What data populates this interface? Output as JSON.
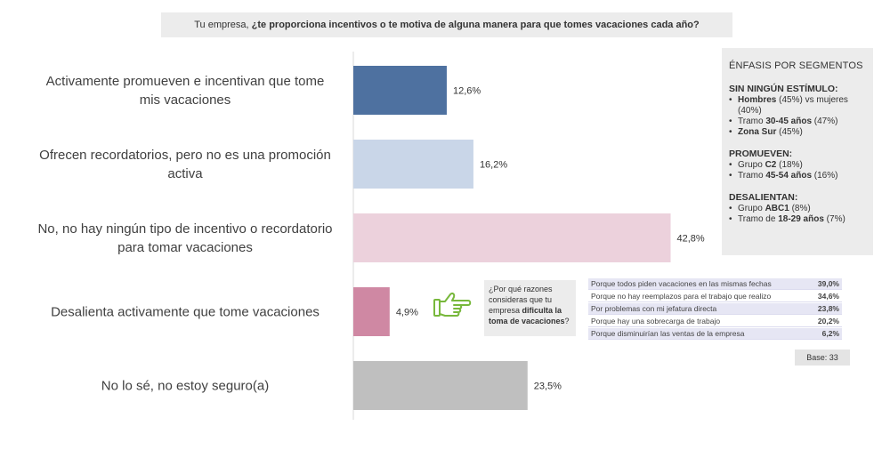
{
  "header": {
    "prefix": "Tu empresa, ",
    "question": "¿te proporciona incentivos o te motiva de alguna manera para que tomes vacaciones cada año?"
  },
  "chart_data": {
    "type": "bar",
    "orientation": "horizontal",
    "categories": [
      [
        "Activamente promueven e incentivan que tome",
        "mis vacaciones"
      ],
      [
        "Ofrecen recordatorios, pero no es una promoción",
        "activa"
      ],
      [
        "No, no hay ningún tipo de incentivo o recordatorio",
        "para tomar vacaciones"
      ],
      [
        "Desalienta activamente que tome vacaciones"
      ],
      [
        "No lo sé, no estoy seguro(a)"
      ]
    ],
    "values": [
      12.6,
      16.2,
      42.8,
      4.9,
      23.5
    ],
    "value_labels": [
      "12,6%",
      "16,2%",
      "42,8%",
      "4,9%",
      "23,5%"
    ],
    "colors": [
      "#4e71a0",
      "#c9d6e8",
      "#ecd1dc",
      "#cf88a3",
      "#bfbfbf"
    ],
    "xlim": [
      0,
      45
    ],
    "grid": false
  },
  "segments": {
    "title": "ÉNFASIS POR SEGMENTOS",
    "groups": [
      {
        "title": "SIN NINGÚN ESTÍMULO:",
        "items": [
          {
            "bold": "Hombres",
            "after": " (45%) vs mujeres (40%)"
          },
          {
            "before": "Tramo ",
            "bold": "30-45 años",
            "after": " (47%)"
          },
          {
            "bold": "Zona Sur",
            "after": " (45%)"
          }
        ]
      },
      {
        "title": "PROMUEVEN:",
        "items": [
          {
            "before": "Grupo ",
            "bold": "C2",
            "after": " (18%)"
          },
          {
            "before": "Tramo ",
            "bold": "45-54 años",
            "after": " (16%)"
          }
        ]
      },
      {
        "title": "DESALIENTAN:",
        "items": [
          {
            "before": "Grupo ",
            "bold": "ABC1",
            "after": " (8%)"
          },
          {
            "before": "Tramo de ",
            "bold": "18-29 años",
            "after": " (7%)"
          }
        ]
      }
    ]
  },
  "hand_icon": "pointing-hand-icon",
  "why": {
    "text1": "¿Por qué razones consideras que tu empresa ",
    "bold": "dificulta la toma de vacaciones",
    "text2": "?"
  },
  "reasons": [
    {
      "text": "Porque todos piden vacaciones en las mismas fechas",
      "value": "39,0%"
    },
    {
      "text": "Porque no hay reemplazos para el trabajo que realizo",
      "value": "34,6%"
    },
    {
      "text": "Por problemas con mi jefatura directa",
      "value": "23,8%"
    },
    {
      "text": "Porque hay una sobrecarga de trabajo",
      "value": "20,2%"
    },
    {
      "text": "Porque disminuirían las ventas de la empresa",
      "value": "6,2%"
    }
  ],
  "base": "Base: 33"
}
